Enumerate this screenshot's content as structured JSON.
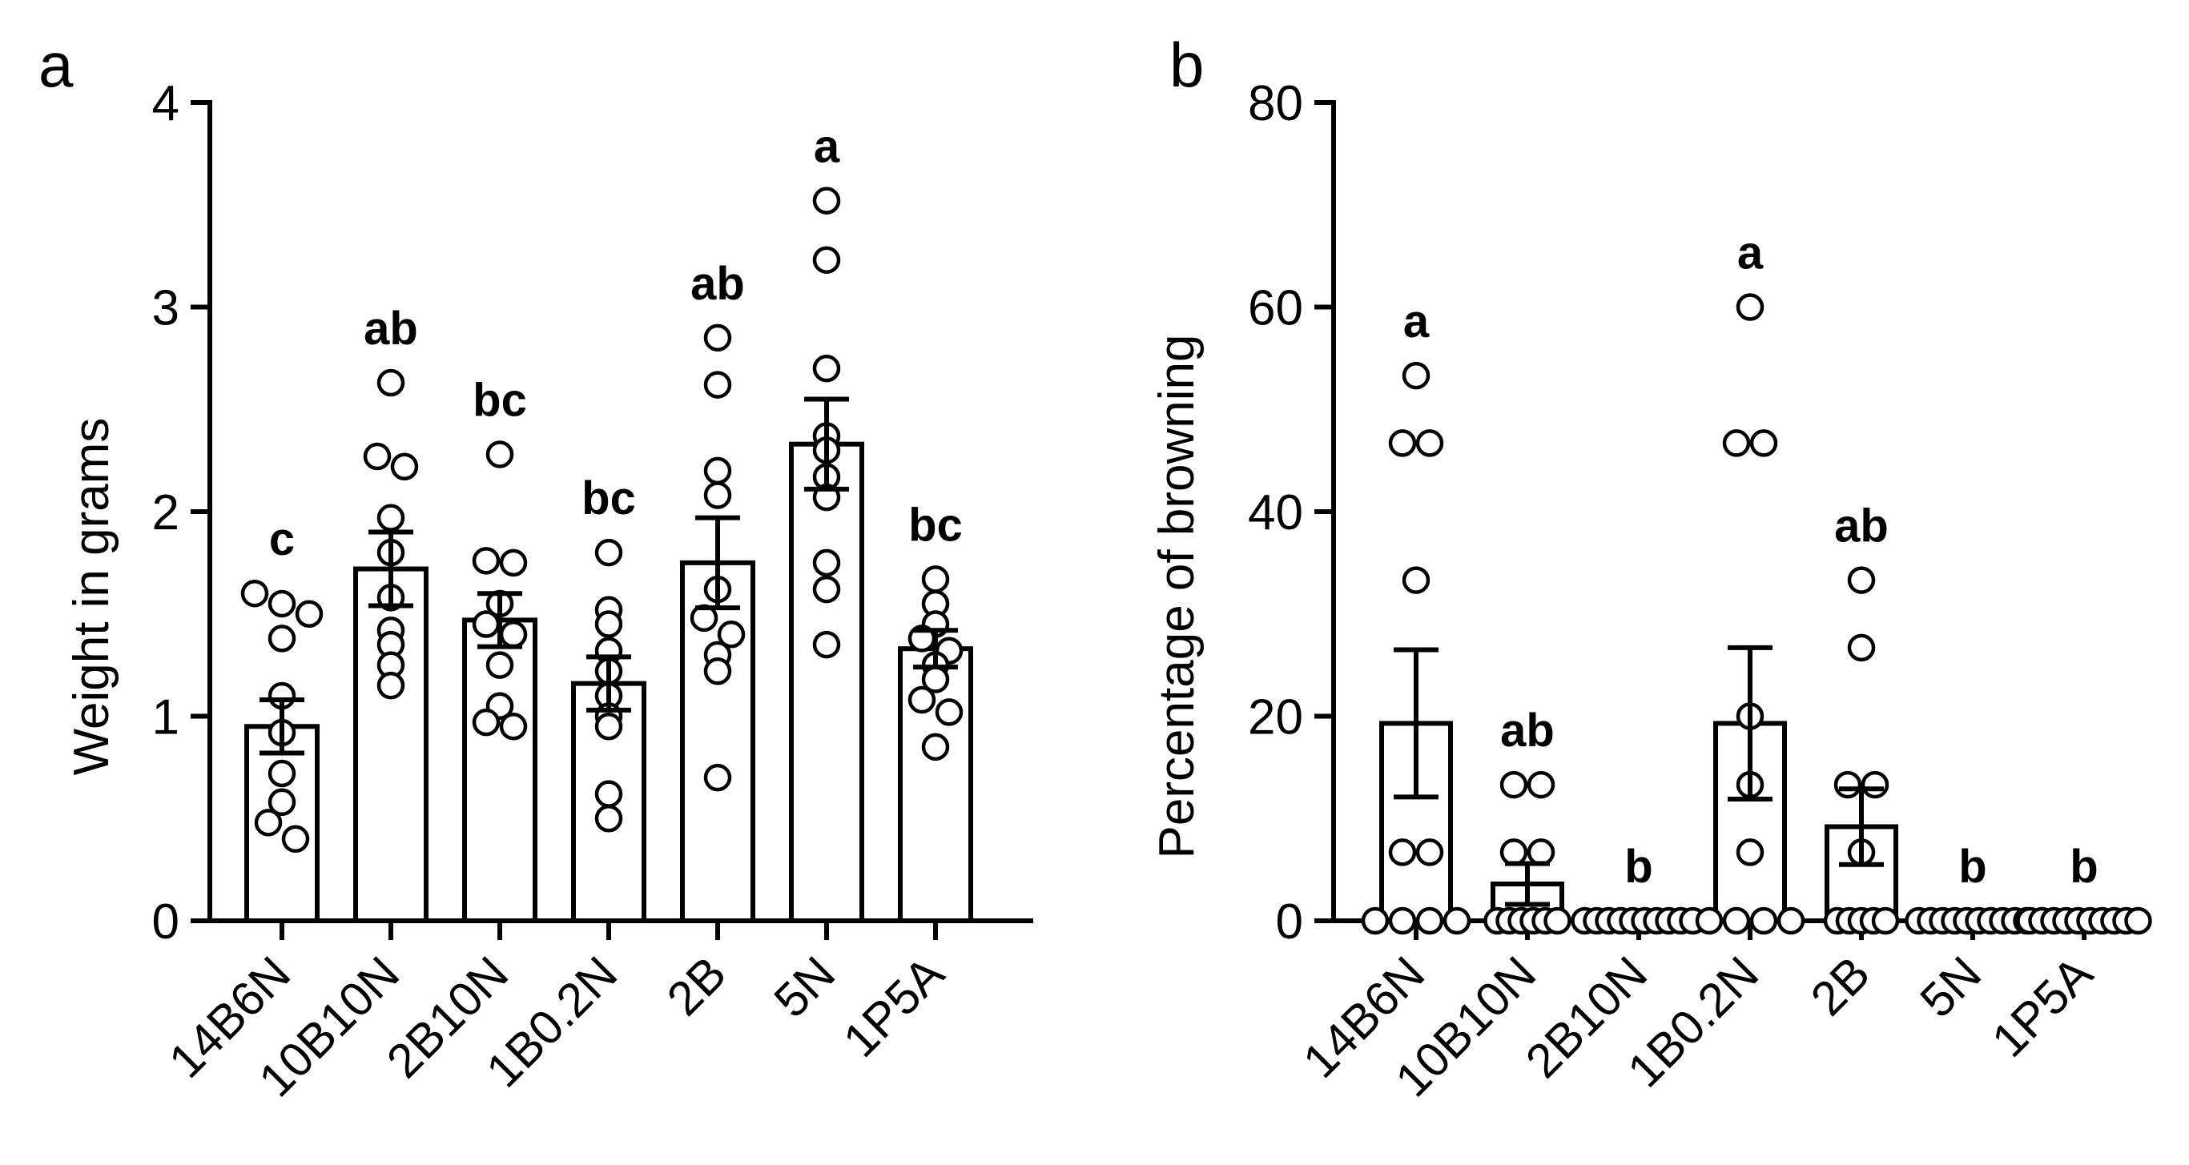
{
  "chart_data": [
    {
      "type": "bar",
      "panel_label": "a",
      "ylabel": "Weight in grams",
      "xlabel": "",
      "ylim": [
        0,
        4
      ],
      "yticks": [
        "0",
        "1",
        "2",
        "3",
        "4"
      ],
      "categories": [
        "14B6N",
        "10B10N",
        "2B10N",
        "1B0.2N",
        "2B",
        "5N",
        "1P5A"
      ],
      "means": [
        0.95,
        1.72,
        1.47,
        1.16,
        1.75,
        2.33,
        1.33
      ],
      "sem": [
        0.13,
        0.18,
        0.13,
        0.13,
        0.22,
        0.22,
        0.09
      ],
      "significance": [
        "c",
        "ab",
        "bc",
        "bc",
        "ab",
        "a",
        "bc"
      ],
      "points": [
        [
          1.6,
          1.55,
          1.5,
          1.38,
          1.1,
          0.92,
          0.72,
          0.58,
          0.48,
          0.4
        ],
        [
          2.63,
          2.27,
          2.22,
          1.97,
          1.8,
          1.58,
          1.42,
          1.35,
          1.25,
          1.15
        ],
        [
          2.28,
          1.76,
          1.75,
          1.55,
          1.45,
          1.4,
          1.25,
          1.05,
          0.97,
          0.95
        ],
        [
          1.8,
          1.52,
          1.45,
          1.32,
          1.22,
          1.1,
          1.0,
          0.95,
          0.62,
          0.5
        ],
        [
          2.85,
          2.62,
          2.2,
          2.08,
          1.62,
          1.48,
          1.4,
          1.3,
          1.22,
          0.7
        ],
        [
          3.52,
          3.23,
          2.7,
          2.37,
          2.3,
          2.17,
          2.07,
          1.75,
          1.62,
          1.35
        ],
        [
          1.67,
          1.55,
          1.45,
          1.38,
          1.32,
          1.25,
          1.18,
          1.08,
          1.02,
          0.85
        ]
      ]
    },
    {
      "type": "bar",
      "panel_label": "b",
      "ylabel": "Percentage of browning",
      "xlabel": "",
      "ylim": [
        0,
        80
      ],
      "yticks": [
        "0",
        "20",
        "40",
        "60",
        "80"
      ],
      "categories": [
        "14B6N",
        "10B10N",
        "2B10N",
        "1B0.2N",
        "2B",
        "5N",
        "1P5A"
      ],
      "means": [
        19.3,
        3.6,
        0,
        19.3,
        9.2,
        0,
        0
      ],
      "sem": [
        7.2,
        2.0,
        0,
        7.4,
        3.7,
        0,
        0
      ],
      "significance": [
        "a",
        "ab",
        "b",
        "a",
        "ab",
        "b",
        "b"
      ],
      "points": [
        [
          53.3,
          46.7,
          46.7,
          33.3,
          6.7,
          6.7,
          0,
          0,
          0,
          0
        ],
        [
          13.3,
          13.3,
          6.7,
          6.7,
          0,
          0,
          0,
          0,
          0,
          0
        ],
        [
          0,
          0,
          0,
          0,
          0,
          0,
          0,
          0,
          0,
          0
        ],
        [
          60.0,
          46.7,
          46.7,
          20.0,
          13.3,
          6.7,
          0,
          0,
          0,
          0
        ],
        [
          33.3,
          26.7,
          13.3,
          13.3,
          6.7,
          0,
          0,
          0,
          0,
          0
        ],
        [
          0,
          0,
          0,
          0,
          0,
          0,
          0,
          0,
          0,
          0
        ],
        [
          0,
          0,
          0,
          0,
          0,
          0,
          0,
          0,
          0,
          0
        ]
      ]
    }
  ]
}
